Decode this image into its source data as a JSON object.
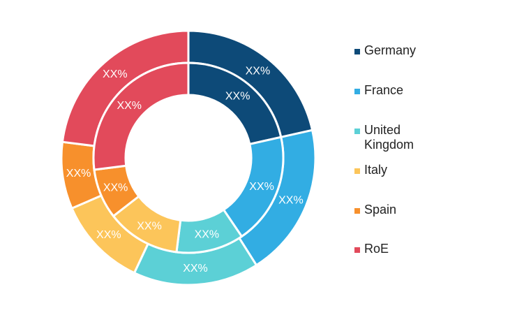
{
  "chart_data": {
    "type": "pie",
    "title": "",
    "categories": [
      "Germany",
      "France",
      "United\nKingdom",
      "Italy",
      "Spain",
      "RoE"
    ],
    "colors": [
      "#0d4a78",
      "#32ade3",
      "#5cd0d6",
      "#fcc55a",
      "#f7902c",
      "#e24a5b"
    ],
    "rings": [
      {
        "ring": "outer",
        "values": [
          21.5,
          19.5,
          16.0,
          11.5,
          8.5,
          23.0
        ],
        "labels": [
          "XX%",
          "XX%",
          "XX%",
          "XX%",
          "XX%",
          "XX%"
        ]
      },
      {
        "ring": "inner",
        "values": [
          21.5,
          19.0,
          11.5,
          12.5,
          8.5,
          27.0
        ],
        "labels": [
          "XX%",
          "XX%",
          "XX%",
          "XX%",
          "XX%",
          "XX%"
        ]
      }
    ],
    "legend_position": "right"
  }
}
